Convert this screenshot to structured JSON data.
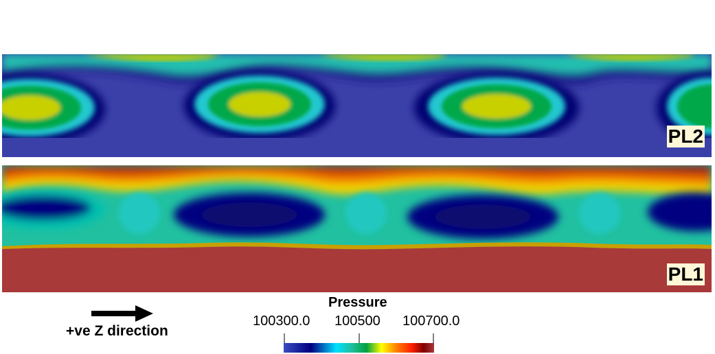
{
  "panels": {
    "top_label": "PL2",
    "bottom_label": "PL1"
  },
  "direction": {
    "label": "+ve Z direction",
    "icon": "right-arrow-icon"
  },
  "legend": {
    "title": "Pressure",
    "tick_min": "100300.0",
    "tick_mid": "100500",
    "tick_max": "100700.0",
    "range": [
      100300.0,
      100700.0
    ],
    "colormap": [
      "#3b4cc0",
      "#000080",
      "#00e0ff",
      "#20c0a0",
      "#00a040",
      "#ffff00",
      "#ff8000",
      "#ff2000",
      "#800000",
      "#a83a3a"
    ]
  }
}
